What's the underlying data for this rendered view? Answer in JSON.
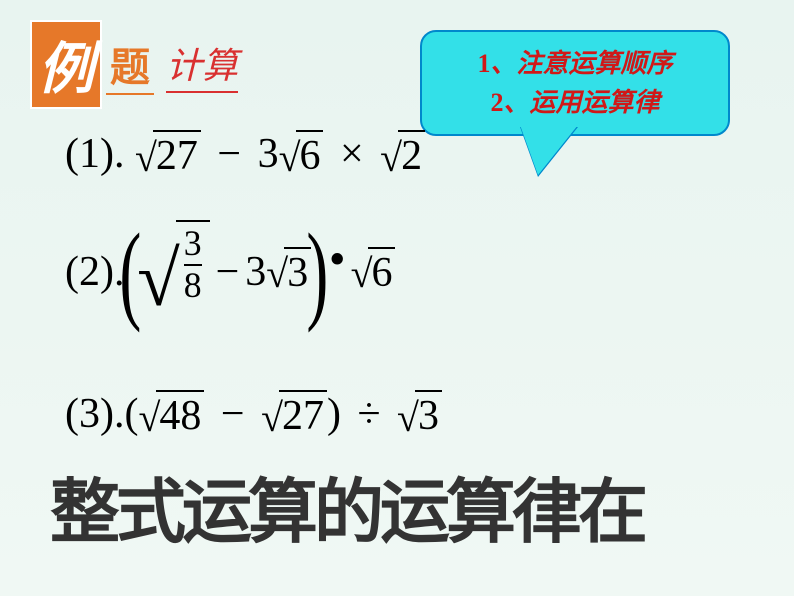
{
  "header": {
    "li": "例",
    "ti": "题",
    "jisuan": "计算"
  },
  "note": {
    "line1_num": "1",
    "line1_text": "、注意运算顺序",
    "line2_num": "2",
    "line2_text": "、运用运算律",
    "bg_color": "#33e0e8",
    "border_color": "#0088cc",
    "text_color": "#d01818"
  },
  "equations": {
    "eq1": {
      "label": "(1).",
      "parts": {
        "a_rad": "27",
        "minus": "−",
        "b_coef": "3",
        "b_rad": "6",
        "times": "×",
        "c_rad": "2"
      }
    },
    "eq2": {
      "label": "(2).",
      "parts": {
        "frac_num": "3",
        "frac_den": "8",
        "minus": "−",
        "b_coef": "3",
        "b_rad": "3",
        "dot": "•",
        "c_rad": "6"
      }
    },
    "eq3": {
      "label": "(3).",
      "parts": {
        "lparen": "(",
        "a_rad": "48",
        "minus": "−",
        "b_rad": "27",
        "rparen": ")",
        "div": "÷",
        "c_rad": "3"
      }
    }
  },
  "bottom_text": "整式运算的运算律在",
  "colors": {
    "bg_top": "#e8f4f0",
    "accent_orange": "#e67829",
    "accent_red": "#d93030"
  }
}
